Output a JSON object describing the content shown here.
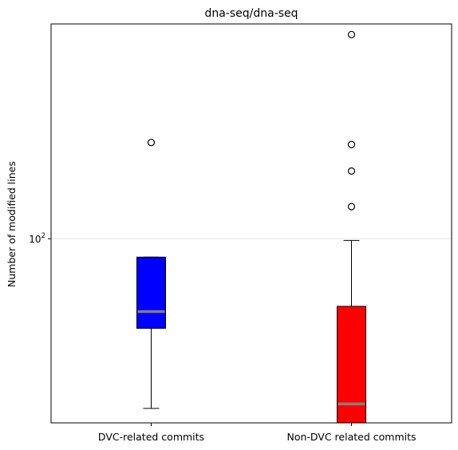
{
  "chart_data": {
    "type": "box",
    "title": "dna-seq/dna-seq",
    "xlabel": "",
    "ylabel": "Number of modified lines",
    "yscale": "log",
    "ylim": [
      35,
      340
    ],
    "yticks": [
      {
        "value": 100,
        "base": "10",
        "exponent": "2"
      }
    ],
    "grid": "y-major",
    "categories": [
      "DVC-related commits",
      "Non-DVC related commits"
    ],
    "boxes": [
      {
        "name": "DVC-related commits",
        "color": "#0000ff",
        "whisker_low": 38,
        "q1": 60,
        "median": 66,
        "q3": 90,
        "whisker_high": 90,
        "outliers": [
          173
        ]
      },
      {
        "name": "Non-DVC related commits",
        "color": "#ff0000",
        "whisker_low": 35,
        "q1": 35,
        "median": 39,
        "q3": 68,
        "whisker_high": 99,
        "outliers": [
          120,
          147,
          171,
          320
        ]
      }
    ],
    "median_color": "#808080"
  }
}
